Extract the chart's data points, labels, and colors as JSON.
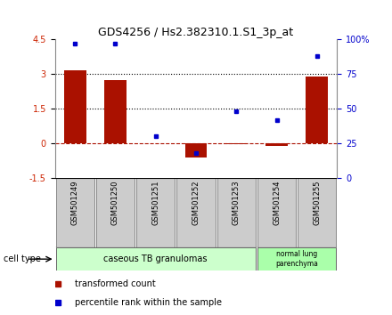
{
  "title": "GDS4256 / Hs2.382310.1.S1_3p_at",
  "samples": [
    "GSM501249",
    "GSM501250",
    "GSM501251",
    "GSM501252",
    "GSM501253",
    "GSM501254",
    "GSM501255"
  ],
  "transformed_count": [
    3.15,
    2.75,
    0.0,
    -0.6,
    -0.05,
    -0.1,
    2.9
  ],
  "percentile_rank": [
    97,
    97,
    30,
    18,
    48,
    42,
    88
  ],
  "ylim_left": [
    -1.5,
    4.5
  ],
  "ylim_right": [
    0,
    100
  ],
  "yticks_left": [
    -1.5,
    0,
    1.5,
    3,
    4.5
  ],
  "yticks_right": [
    0,
    25,
    50,
    75,
    100
  ],
  "ytick_labels_left": [
    "-1.5",
    "0",
    "1.5",
    "3",
    "4.5"
  ],
  "ytick_labels_right": [
    "0",
    "25",
    "50",
    "75",
    "100%"
  ],
  "hlines_dotted": [
    1.5,
    3.0
  ],
  "hline_dashed": 0.0,
  "bar_color": "#aa1100",
  "dot_color": "#0000cc",
  "bar_width": 0.55,
  "cell_types": [
    {
      "label": "caseous TB granulomas",
      "start": 0,
      "end": 4,
      "color": "#ccffcc"
    },
    {
      "label": "normal lung\nparenchyma",
      "start": 5,
      "end": 6,
      "color": "#aaffaa"
    }
  ],
  "cell_type_label": "cell type",
  "legend_transformed": "transformed count",
  "legend_percentile": "percentile rank within the sample",
  "bg_color": "#ffffff",
  "plot_bg": "#ffffff",
  "tick_label_color_left": "#cc2200",
  "tick_label_color_right": "#0000cc",
  "sample_box_color": "#cccccc",
  "sample_box_edge": "#888888"
}
